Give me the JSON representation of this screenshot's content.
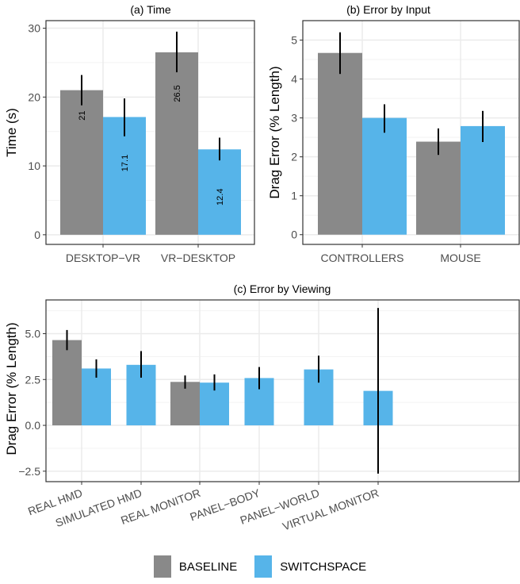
{
  "colors": {
    "BASELINE": "#898989",
    "SWITCHSPACE": "#56B4E9"
  },
  "legend": {
    "items": [
      "BASELINE",
      "SWITCHSPACE"
    ],
    "placement": "bottom"
  },
  "chart_data": [
    {
      "type": "bar",
      "title": "(a) Time",
      "xlabel": "",
      "ylabel": "Time (s)",
      "ylim": [
        0,
        30
      ],
      "yticks": [
        "0",
        "10",
        "20",
        "30"
      ],
      "grid": true,
      "categories": [
        "DESKTOP−VR",
        "VR−DESKTOP"
      ],
      "series": [
        {
          "name": "BASELINE",
          "values": [
            21,
            26.5
          ],
          "err_low": [
            18.8,
            23.6
          ],
          "err_high": [
            23.2,
            29.5
          ],
          "labels": [
            "21",
            "26.5"
          ]
        },
        {
          "name": "SWITCHSPACE",
          "values": [
            17.1,
            12.4
          ],
          "err_low": [
            14.3,
            10.8
          ],
          "err_high": [
            19.8,
            14.1
          ],
          "labels": [
            "17.1",
            "12.4"
          ]
        }
      ]
    },
    {
      "type": "bar",
      "title": "(b) Error by Input",
      "xlabel": "",
      "ylabel": "Drag Error (% Length)",
      "ylim": [
        0,
        5
      ],
      "yticks": [
        "0",
        "1",
        "2",
        "3",
        "4",
        "5"
      ],
      "grid": true,
      "categories": [
        "CONTROLLERS",
        "MOUSE"
      ],
      "series": [
        {
          "name": "BASELINE",
          "values": [
            4.67,
            2.39
          ],
          "err_low": [
            4.13,
            2.05
          ],
          "err_high": [
            5.2,
            2.73
          ]
        },
        {
          "name": "SWITCHSPACE",
          "values": [
            3.0,
            2.79
          ],
          "err_low": [
            2.62,
            2.38
          ],
          "err_high": [
            3.35,
            3.18
          ]
        }
      ]
    },
    {
      "type": "bar",
      "title": "(c) Error by Viewing",
      "xlabel": "",
      "ylabel": "Drag Error (% Length)",
      "ylim": [
        -2.5,
        5.0
      ],
      "yticks": [
        "−2.5",
        "0.0",
        "2.5",
        "5.0"
      ],
      "grid": true,
      "categories": [
        "REAL HMD",
        "SIMULATED HMD",
        "REAL MONITOR",
        "PANEL−BODY",
        "PANEL−WORLD",
        "VIRTUAL MONITOR"
      ],
      "series": [
        {
          "name": "BASELINE",
          "values": [
            4.65,
            null,
            2.37,
            null,
            null,
            null
          ],
          "err_low": [
            4.1,
            null,
            2.0,
            null,
            null,
            null
          ],
          "err_high": [
            5.2,
            null,
            2.72,
            null,
            null,
            null
          ]
        },
        {
          "name": "SWITCHSPACE",
          "values": [
            3.1,
            3.3,
            2.33,
            2.58,
            3.05,
            1.88
          ],
          "err_low": [
            2.6,
            2.6,
            1.9,
            1.97,
            2.33,
            -2.63
          ],
          "err_high": [
            3.6,
            4.05,
            2.78,
            3.18,
            3.8,
            6.4
          ]
        }
      ]
    }
  ]
}
